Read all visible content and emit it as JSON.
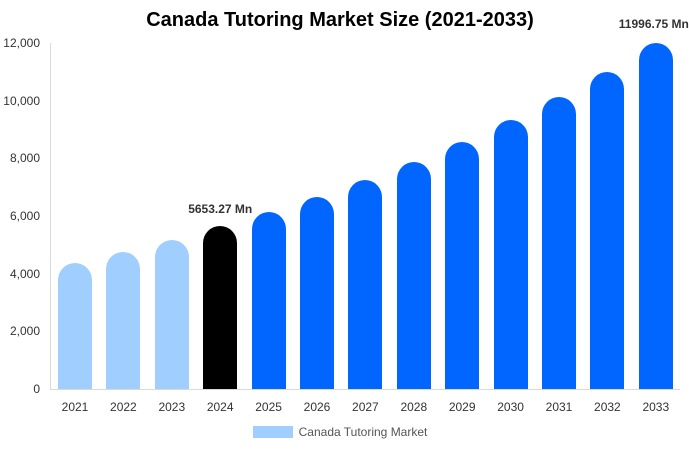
{
  "chart_data": {
    "type": "bar",
    "title": "Canada Tutoring Market Size (2021-2033)",
    "xlabel": "",
    "ylabel": "",
    "ylim": [
      0,
      12000
    ],
    "yticks": [
      "0",
      "2,000",
      "4,000",
      "6,000",
      "8,000",
      "10,000",
      "12,000"
    ],
    "categories": [
      "2021",
      "2022",
      "2023",
      "2024",
      "2025",
      "2026",
      "2027",
      "2028",
      "2029",
      "2030",
      "2031",
      "2032",
      "2033"
    ],
    "series": [
      {
        "name": "Canada Tutoring Market",
        "values": [
          4370,
          4750,
          5170,
          5653.27,
          6140,
          6660,
          7250,
          7870,
          8570,
          9330,
          10130,
          11000,
          11996.75
        ]
      }
    ],
    "bar_colors": [
      "#a0cfff",
      "#a0cfff",
      "#a0cfff",
      "#000000",
      "#0066ff",
      "#0066ff",
      "#0066ff",
      "#0066ff",
      "#0066ff",
      "#0066ff",
      "#0066ff",
      "#0066ff",
      "#0066ff"
    ],
    "annotations": [
      {
        "category": "2024",
        "label": "5653.27 Mn"
      },
      {
        "category": "2033",
        "label": "11996.75 Mn"
      }
    ],
    "legend": {
      "position": "bottom",
      "entries": [
        "Canada Tutoring Market"
      ]
    },
    "grid": false
  }
}
